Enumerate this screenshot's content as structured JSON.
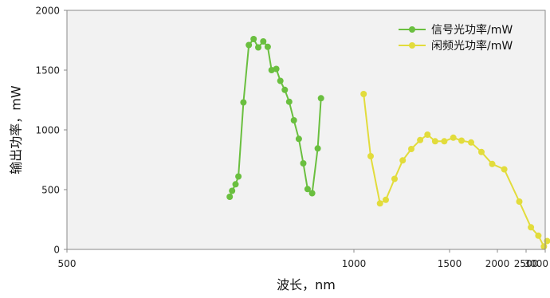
{
  "chart_data": {
    "type": "line",
    "title": "",
    "xlabel": "波长，nm",
    "ylabel": "输出功率，mW",
    "x_scale": "reciprocal",
    "xlim": [
      500,
      3000
    ],
    "ylim": [
      0,
      2000
    ],
    "x_ticks": [
      500,
      1000,
      1500,
      2000,
      2500,
      3000
    ],
    "x_tick_labels": [
      "500",
      "1000",
      "1500",
      "2000",
      "2500",
      "3000"
    ],
    "y_ticks": [
      0,
      500,
      1000,
      1500,
      2000
    ],
    "y_tick_labels": [
      "0",
      "500",
      "1000",
      "1500",
      "2000"
    ],
    "grid": false,
    "legend_position": "top-right",
    "plot_background": "#f2f2f2",
    "series": [
      {
        "name": "信号光功率/mW",
        "color": "#6abf3f",
        "points": [
          [
            698,
            440
          ],
          [
            702,
            490
          ],
          [
            708,
            545
          ],
          [
            713,
            610
          ],
          [
            722,
            1230
          ],
          [
            732,
            1710
          ],
          [
            741,
            1760
          ],
          [
            750,
            1690
          ],
          [
            760,
            1740
          ],
          [
            769,
            1695
          ],
          [
            777,
            1500
          ],
          [
            787,
            1510
          ],
          [
            796,
            1410
          ],
          [
            806,
            1335
          ],
          [
            816,
            1235
          ],
          [
            827,
            1080
          ],
          [
            839,
            925
          ],
          [
            850,
            720
          ],
          [
            861,
            505
          ],
          [
            873,
            470
          ],
          [
            888,
            845
          ],
          [
            897,
            1265
          ]
        ]
      },
      {
        "name": "闲频光功率/mW",
        "color": "#e2dc3c",
        "points": [
          [
            1035,
            1300
          ],
          [
            1062,
            780
          ],
          [
            1100,
            385
          ],
          [
            1125,
            415
          ],
          [
            1165,
            590
          ],
          [
            1205,
            745
          ],
          [
            1250,
            840
          ],
          [
            1300,
            915
          ],
          [
            1345,
            960
          ],
          [
            1395,
            905
          ],
          [
            1460,
            905
          ],
          [
            1530,
            935
          ],
          [
            1600,
            910
          ],
          [
            1690,
            895
          ],
          [
            1800,
            815
          ],
          [
            1930,
            715
          ],
          [
            2100,
            670
          ],
          [
            2360,
            400
          ],
          [
            2610,
            185
          ],
          [
            2800,
            115
          ],
          [
            2960,
            25
          ],
          [
            3060,
            70
          ]
        ]
      }
    ]
  }
}
